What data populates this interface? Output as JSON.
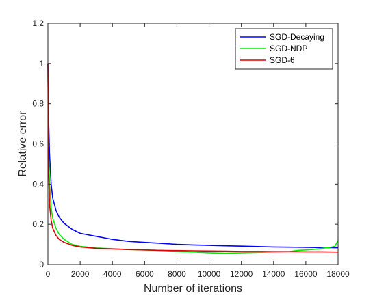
{
  "chart_data": {
    "type": "line",
    "title": "",
    "xlabel": "Number of iterations",
    "ylabel": "Relative error",
    "xlim": [
      0,
      18000
    ],
    "ylim": [
      0,
      1.2
    ],
    "xticks": [
      0,
      2000,
      4000,
      6000,
      8000,
      10000,
      12000,
      14000,
      16000,
      18000
    ],
    "xtick_labels": [
      "0",
      "2000",
      "4000",
      "6000",
      "8000",
      "10000",
      "12000",
      "14000",
      "16000",
      "18000"
    ],
    "yticks": [
      0,
      0.2,
      0.4,
      0.6,
      0.8,
      1,
      1.2
    ],
    "ytick_labels": [
      "0",
      "0.2",
      "0.4",
      "0.6",
      "0.8",
      "1",
      "1.2"
    ],
    "grid": false,
    "legend_position": "top-right",
    "series": [
      {
        "name": "SGD-Decaying",
        "color": "#0000ff",
        "x": [
          0,
          50,
          100,
          200,
          300,
          500,
          700,
          1000,
          1500,
          2000,
          3000,
          4000,
          5000,
          6000,
          7000,
          8000,
          9000,
          10000,
          11000,
          12000,
          13000,
          14000,
          15000,
          16000,
          17000,
          18000
        ],
        "y": [
          1.0,
          0.7,
          0.55,
          0.4,
          0.33,
          0.27,
          0.235,
          0.205,
          0.175,
          0.155,
          0.14,
          0.125,
          0.115,
          0.11,
          0.105,
          0.1,
          0.097,
          0.095,
          0.093,
          0.091,
          0.089,
          0.087,
          0.086,
          0.085,
          0.084,
          0.083
        ]
      },
      {
        "name": "SGD-NDP",
        "color": "#00ee00",
        "x": [
          0,
          50,
          100,
          200,
          300,
          500,
          700,
          1000,
          1500,
          2000,
          3000,
          4000,
          5000,
          6000,
          7000,
          8000,
          9000,
          10000,
          11000,
          12000,
          13000,
          14000,
          15000,
          15500,
          16000,
          16500,
          17000,
          17500,
          17800,
          18000
        ],
        "y": [
          0.95,
          0.55,
          0.4,
          0.28,
          0.23,
          0.18,
          0.15,
          0.125,
          0.1,
          0.09,
          0.082,
          0.078,
          0.074,
          0.072,
          0.07,
          0.066,
          0.062,
          0.058,
          0.056,
          0.058,
          0.06,
          0.062,
          0.064,
          0.07,
          0.072,
          0.075,
          0.08,
          0.085,
          0.09,
          0.12
        ]
      },
      {
        "name": "SGD-θ",
        "color": "#e00000",
        "x": [
          0,
          50,
          100,
          200,
          300,
          500,
          700,
          1000,
          1500,
          2000,
          3000,
          4000,
          5000,
          6000,
          7000,
          8000,
          9000,
          10000,
          11000,
          12000,
          13000,
          14000,
          15000,
          16000,
          17000,
          18000
        ],
        "y": [
          1.0,
          0.45,
          0.3,
          0.22,
          0.18,
          0.145,
          0.125,
          0.11,
          0.095,
          0.087,
          0.08,
          0.077,
          0.074,
          0.072,
          0.07,
          0.069,
          0.068,
          0.067,
          0.066,
          0.065,
          0.065,
          0.064,
          0.064,
          0.063,
          0.063,
          0.062
        ]
      }
    ]
  }
}
